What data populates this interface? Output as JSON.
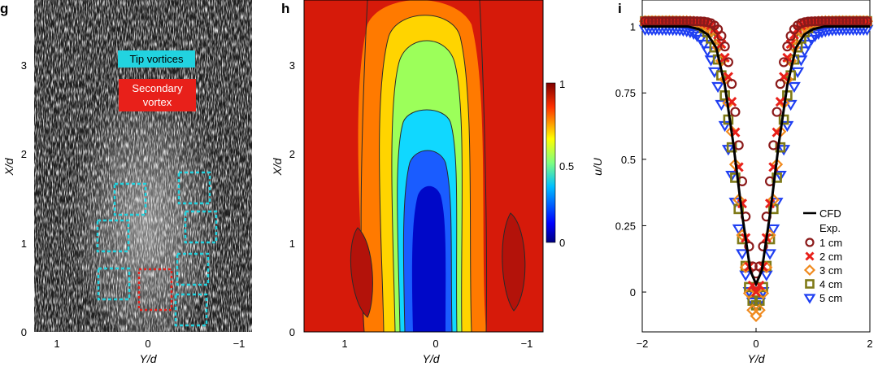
{
  "panels": {
    "g": {
      "letter": "g",
      "xlabel": "Y/d",
      "ylabel": "X/d",
      "xticks": [
        "1",
        "0",
        "−1"
      ],
      "yticks": [
        "0",
        "1",
        "2",
        "3"
      ],
      "labels": {
        "tip_vortices": "Tip vortices",
        "secondary_line1": "Secondary",
        "secondary_line2": "vortex"
      },
      "colors": {
        "tip": "#22d3e0",
        "secondary": "#e8201a"
      }
    },
    "h": {
      "letter": "h",
      "xlabel": "Y/d",
      "ylabel": "X/d",
      "xticks": [
        "1",
        "0",
        "−1"
      ],
      "yticks": [
        "0",
        "1",
        "2",
        "3"
      ],
      "colorbar_ticks": [
        "0",
        "0.5",
        "1"
      ]
    },
    "i": {
      "letter": "i",
      "xlabel": "Y/d",
      "ylabel": "u/U",
      "legend_cfd": "CFD",
      "legend_exp": "Exp."
    }
  },
  "chart_data": {
    "type": "scatter",
    "xlim": [
      -2,
      2
    ],
    "ylim": [
      -0.15,
      1.1
    ],
    "x_ticks": [
      -2,
      0,
      2
    ],
    "x_tick_labels": [
      "−2",
      "0",
      "2"
    ],
    "y_ticks": [
      0,
      0.25,
      0.5,
      0.75,
      1
    ],
    "y_tick_labels": [
      "0",
      "0.25",
      "0.5",
      "0.75",
      "1"
    ],
    "grid": false,
    "legend_position": "bottom-right",
    "cfd": {
      "name": "CFD",
      "color": "#000000",
      "x": [
        -2,
        -1.5,
        -1.2,
        -1.0,
        -0.85,
        -0.7,
        -0.55,
        -0.4,
        -0.25,
        -0.1,
        0,
        0.1,
        0.25,
        0.4,
        0.55,
        0.7,
        0.85,
        1.0,
        1.2,
        1.5,
        2
      ],
      "y": [
        1.0,
        1.0,
        1.0,
        0.99,
        0.97,
        0.92,
        0.78,
        0.56,
        0.3,
        0.08,
        0.03,
        0.08,
        0.3,
        0.56,
        0.78,
        0.92,
        0.97,
        0.99,
        1.0,
        1.0,
        1.0
      ]
    },
    "series": [
      {
        "name": "1 cm",
        "marker": "circle",
        "color": "#8b1a1a",
        "min": 0.07,
        "halfwidth": 0.42,
        "plateau": 1.02
      },
      {
        "name": "2 cm",
        "marker": "cross",
        "color": "#e8201a",
        "min": 0.0,
        "halfwidth": 0.45,
        "plateau": 1.02
      },
      {
        "name": "3 cm",
        "marker": "diamond",
        "color": "#f08a1e",
        "min": -0.09,
        "halfwidth": 0.5,
        "plateau": 1.02
      },
      {
        "name": "4 cm",
        "marker": "square",
        "color": "#7f7a17",
        "min": -0.05,
        "halfwidth": 0.55,
        "plateau": 1.02
      },
      {
        "name": "5 cm",
        "marker": "triangle",
        "color": "#1f3ff2",
        "min": -0.05,
        "halfwidth": 0.62,
        "plateau": 0.99
      }
    ]
  }
}
